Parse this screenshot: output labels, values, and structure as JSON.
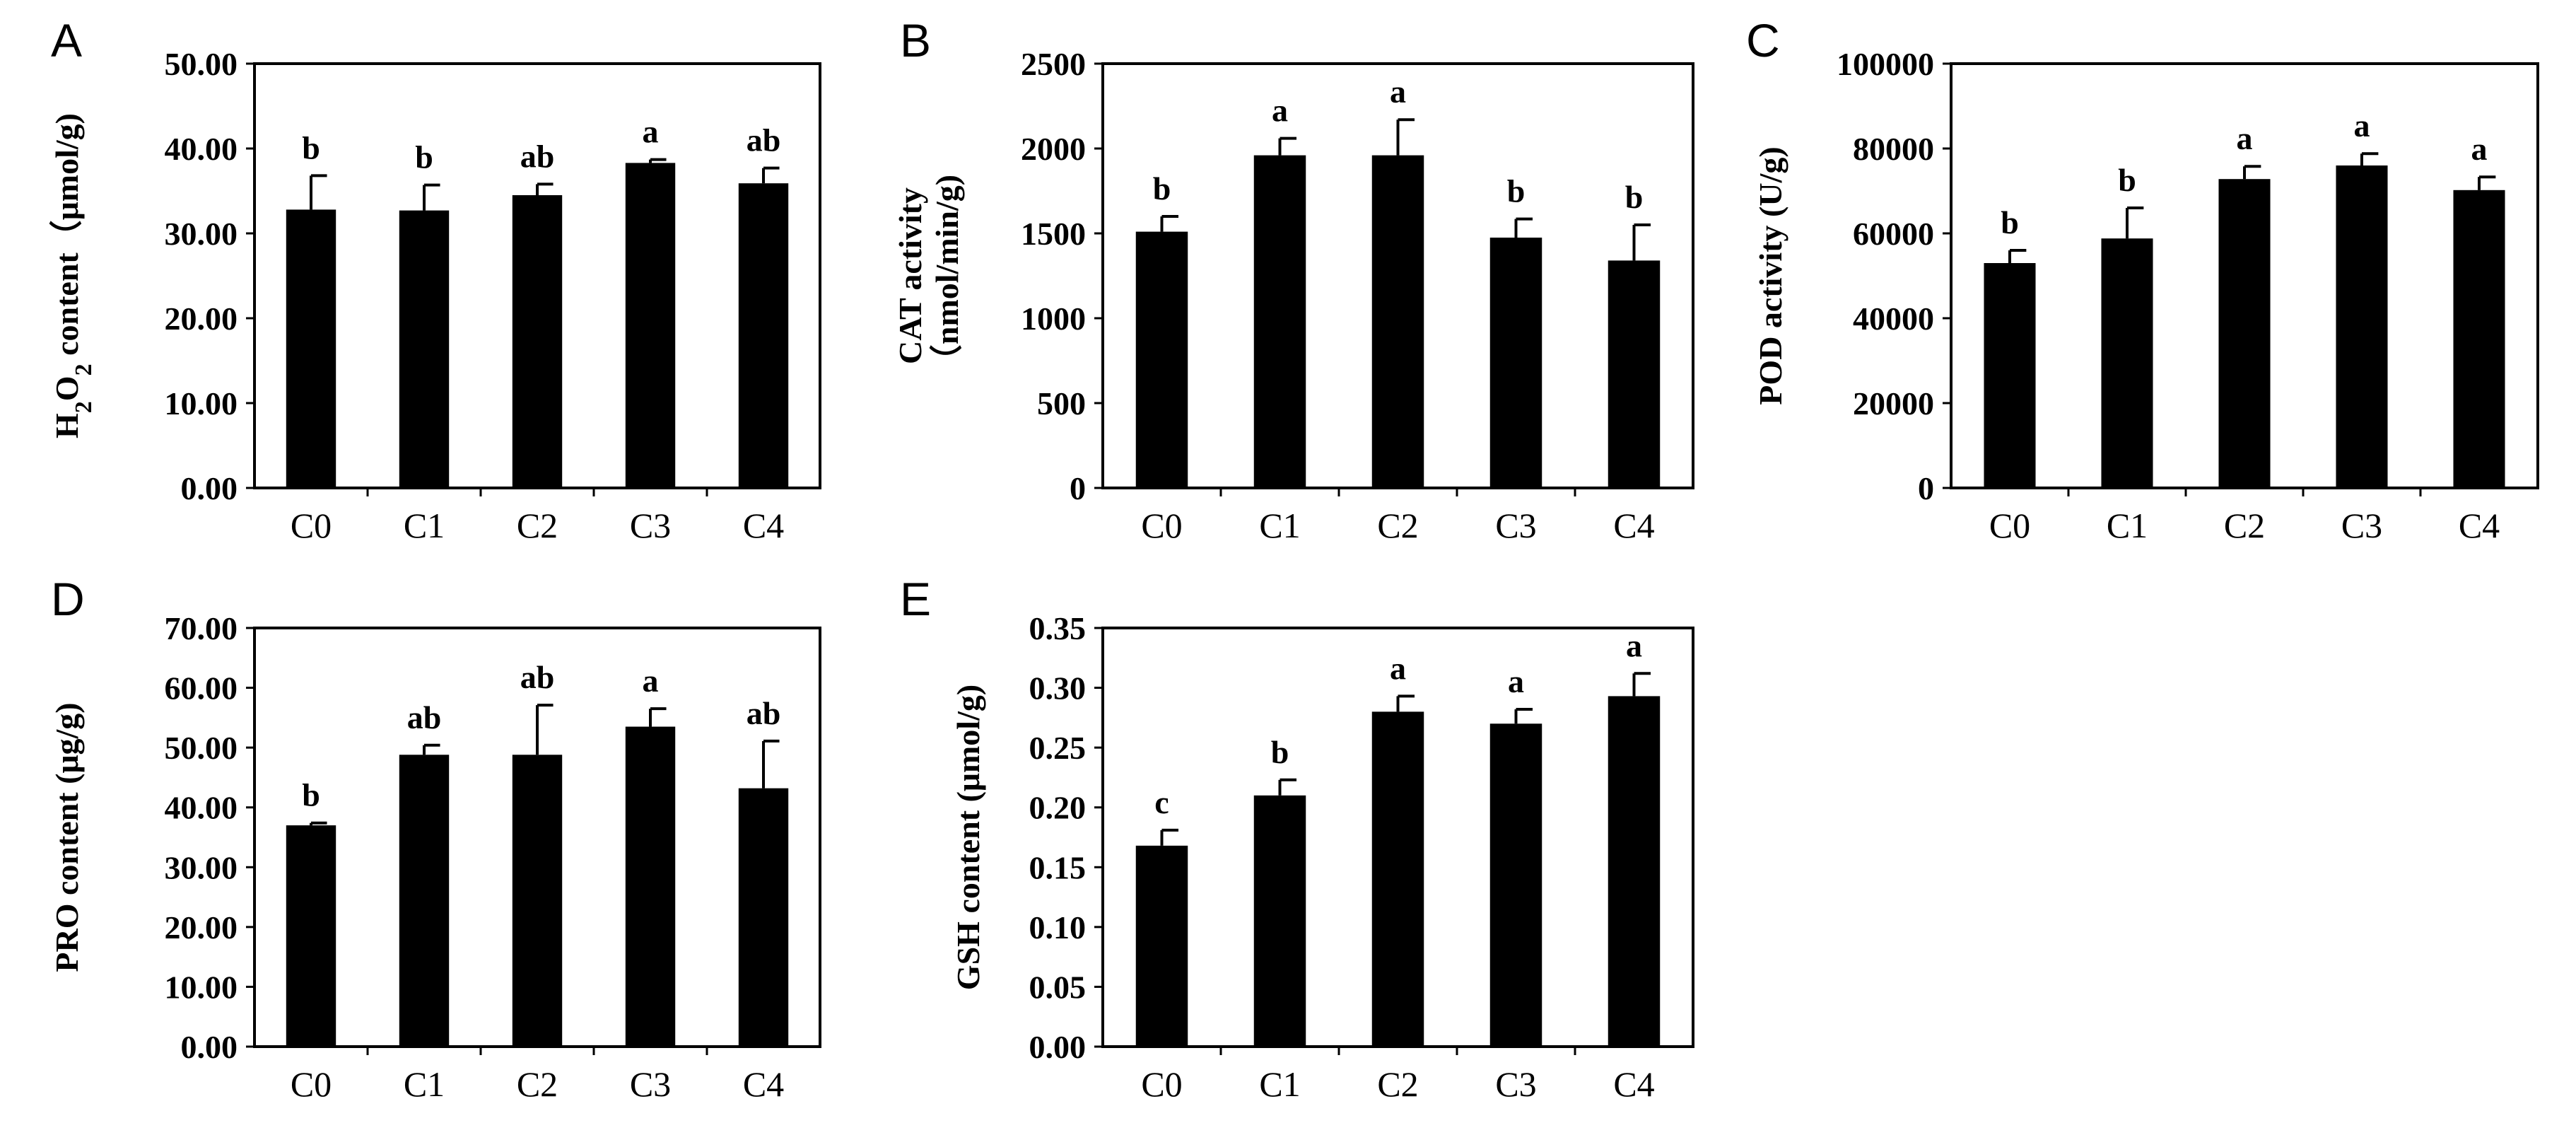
{
  "chart_data": [
    {
      "panel": "A",
      "type": "bar",
      "categories": [
        "C0",
        "C1",
        "C2",
        "C3",
        "C4"
      ],
      "values": [
        32.8,
        32.7,
        34.5,
        38.3,
        35.9
      ],
      "errors": [
        4.0,
        3.0,
        1.3,
        0.4,
        1.8
      ],
      "significance": [
        "b",
        "b",
        "ab",
        "a",
        "ab"
      ],
      "ylabel_parts": [
        "H",
        "2",
        "O",
        "2",
        " content（μmol/g)"
      ],
      "ylim": [
        0,
        50
      ],
      "yticks": [
        0,
        10,
        20,
        30,
        40,
        50
      ],
      "ytick_labels": [
        "0.00",
        "10.00",
        "20.00",
        "30.00",
        "40.00",
        "50.00"
      ]
    },
    {
      "panel": "B",
      "type": "bar",
      "categories": [
        "C0",
        "C1",
        "C2",
        "C3",
        "C4"
      ],
      "values": [
        1510,
        1960,
        1960,
        1475,
        1340
      ],
      "errors": [
        90,
        100,
        210,
        110,
        210
      ],
      "significance": [
        "b",
        "a",
        "a",
        "b",
        "b"
      ],
      "ylabel_lines": [
        "CAT activity",
        "（nmol/min/g)"
      ],
      "ylim": [
        0,
        2500
      ],
      "yticks": [
        0,
        500,
        1000,
        1500,
        2000,
        2500
      ],
      "ytick_labels": [
        "0",
        "500",
        "1000",
        "1500",
        "2000",
        "2500"
      ]
    },
    {
      "panel": "C",
      "type": "bar",
      "categories": [
        "C0",
        "C1",
        "C2",
        "C3",
        "C4"
      ],
      "values": [
        53000,
        58800,
        72800,
        76000,
        70200
      ],
      "errors": [
        3000,
        7200,
        3000,
        2800,
        3100
      ],
      "significance": [
        "b",
        "b",
        "a",
        "a",
        "a"
      ],
      "ylabel_lines": [
        "POD activity (U/g)"
      ],
      "ylim": [
        0,
        100000
      ],
      "yticks": [
        0,
        20000,
        40000,
        60000,
        80000,
        100000
      ],
      "ytick_labels": [
        "0",
        "20000",
        "40000",
        "60000",
        "80000",
        "100000"
      ]
    },
    {
      "panel": "D",
      "type": "bar",
      "categories": [
        "C0",
        "C1",
        "C2",
        "C3",
        "C4"
      ],
      "values": [
        37.0,
        48.8,
        48.8,
        53.5,
        43.2
      ],
      "errors": [
        0.4,
        1.6,
        8.3,
        3.0,
        7.9
      ],
      "significance": [
        "b",
        "ab",
        "ab",
        "a",
        "ab"
      ],
      "ylabel_lines": [
        "PRO content (μg/g)"
      ],
      "ylim": [
        0,
        70
      ],
      "yticks": [
        0,
        10,
        20,
        30,
        40,
        50,
        60,
        70
      ],
      "ytick_labels": [
        "0.00",
        "10.00",
        "20.00",
        "30.00",
        "40.00",
        "50.00",
        "60.00",
        "70.00"
      ]
    },
    {
      "panel": "E",
      "type": "bar",
      "categories": [
        "C0",
        "C1",
        "C2",
        "C3",
        "C4"
      ],
      "values": [
        0.168,
        0.21,
        0.28,
        0.27,
        0.293
      ],
      "errors": [
        0.013,
        0.013,
        0.013,
        0.012,
        0.019
      ],
      "significance": [
        "c",
        "b",
        "a",
        "a",
        "a"
      ],
      "ylabel_lines": [
        "GSH content (μmol/g)"
      ],
      "ylim": [
        0,
        0.35
      ],
      "yticks": [
        0,
        0.05,
        0.1,
        0.15,
        0.2,
        0.25,
        0.3,
        0.35
      ],
      "ytick_labels": [
        "0.00",
        "0.05",
        "0.10",
        "0.15",
        "0.20",
        "0.25",
        "0.30",
        "0.35"
      ]
    }
  ]
}
